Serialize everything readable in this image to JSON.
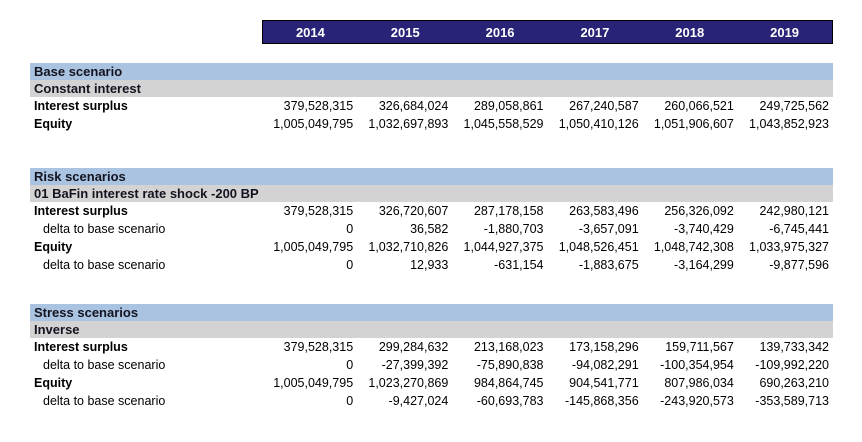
{
  "colors": {
    "year_header_bg": "#282377",
    "year_header_text": "#ffffff",
    "section_band_bg": "#a9c3e1",
    "sub_band_bg": "#d3d3d3",
    "body_text": "#000000"
  },
  "columns": [
    "2014",
    "2015",
    "2016",
    "2017",
    "2018",
    "2019"
  ],
  "sections": [
    {
      "title": "Base scenario",
      "subtitle": "Constant interest",
      "rows": [
        {
          "label": "Interest surplus",
          "values": [
            "379,528,315",
            "326,684,024",
            "289,058,861",
            "267,240,587",
            "260,066,521",
            "249,725,562"
          ]
        },
        {
          "label": "Equity",
          "values": [
            "1,005,049,795",
            "1,032,697,893",
            "1,045,558,529",
            "1,050,410,126",
            "1,051,906,607",
            "1,043,852,923"
          ]
        }
      ]
    },
    {
      "title": "Risk scenarios",
      "subtitle": "01 BaFin interest rate shock -200 BP",
      "rows": [
        {
          "label": "Interest surplus",
          "values": [
            "379,528,315",
            "326,720,607",
            "287,178,158",
            "263,583,496",
            "256,326,092",
            "242,980,121"
          ]
        },
        {
          "label": "delta to base scenario",
          "values": [
            "0",
            "36,582",
            "-1,880,703",
            "-3,657,091",
            "-3,740,429",
            "-6,745,441"
          ]
        },
        {
          "label": "Equity",
          "values": [
            "1,005,049,795",
            "1,032,710,826",
            "1,044,927,375",
            "1,048,526,451",
            "1,048,742,308",
            "1,033,975,327"
          ]
        },
        {
          "label": "delta to base scenario",
          "values": [
            "0",
            "12,933",
            "-631,154",
            "-1,883,675",
            "-3,164,299",
            "-9,877,596"
          ]
        }
      ]
    },
    {
      "title": "Stress scenarios",
      "subtitle": "Inverse",
      "rows": [
        {
          "label": "Interest surplus",
          "values": [
            "379,528,315",
            "299,284,632",
            "213,168,023",
            "173,158,296",
            "159,711,567",
            "139,733,342"
          ]
        },
        {
          "label": "delta to base scenario",
          "values": [
            "0",
            "-27,399,392",
            "-75,890,838",
            "-94,082,291",
            "-100,354,954",
            "-109,992,220"
          ]
        },
        {
          "label": "Equity",
          "values": [
            "1,005,049,795",
            "1,023,270,869",
            "984,864,745",
            "904,541,771",
            "807,986,034",
            "690,263,210"
          ]
        },
        {
          "label": "delta to base scenario",
          "values": [
            "0",
            "-9,427,024",
            "-60,693,783",
            "-145,868,356",
            "-243,920,573",
            "-353,589,713"
          ]
        }
      ]
    }
  ]
}
